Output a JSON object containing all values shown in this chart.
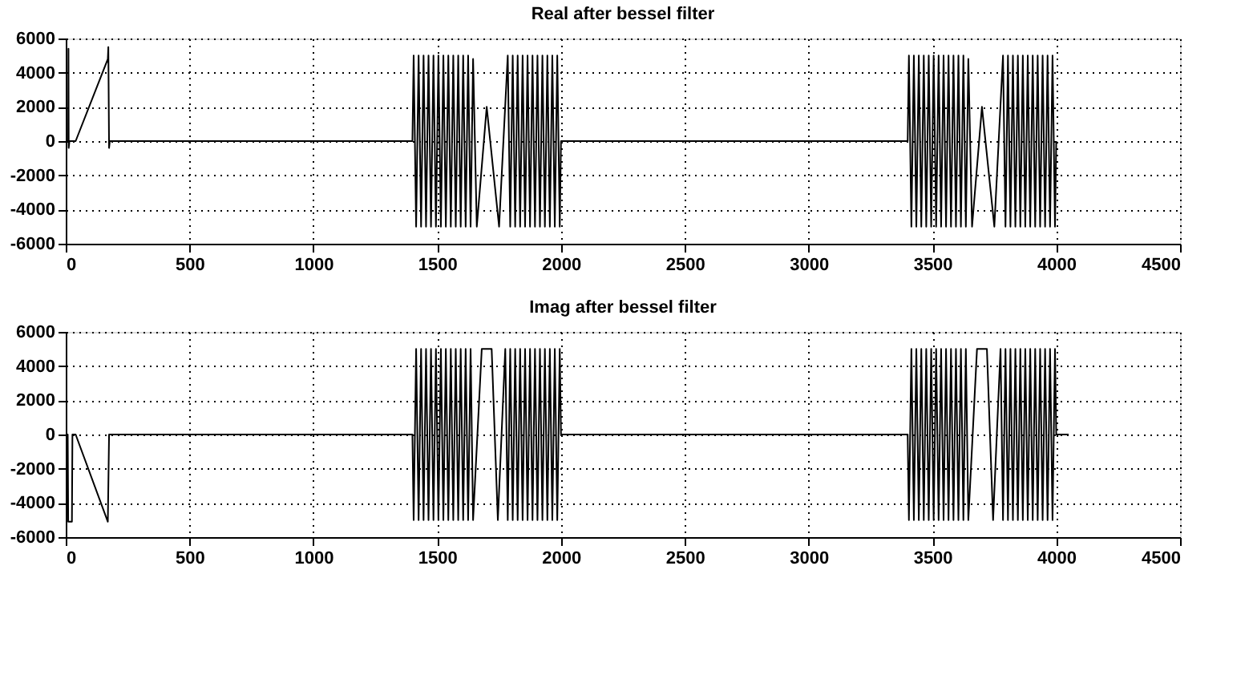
{
  "chart_data": [
    {
      "type": "line",
      "title": "Real after bessel filter",
      "xlim": [
        0,
        4500
      ],
      "ylim": [
        -6000,
        6000
      ],
      "xticks": [
        0,
        500,
        1000,
        1500,
        2000,
        2500,
        3000,
        3500,
        4000,
        4500
      ],
      "yticks": [
        -6000,
        -4000,
        -2000,
        0,
        2000,
        4000,
        6000
      ],
      "grid": true,
      "x": [
        0,
        10,
        11,
        12,
        15,
        40,
        170,
        172,
        175,
        178,
        1400,
        1405,
        1415,
        1425,
        1435,
        1445,
        1455,
        1465,
        1475,
        1485,
        1495,
        1505,
        1515,
        1525,
        1535,
        1545,
        1555,
        1565,
        1575,
        1585,
        1595,
        1605,
        1615,
        1625,
        1635,
        1645,
        1660,
        1700,
        1750,
        1785,
        1795,
        1805,
        1815,
        1825,
        1835,
        1845,
        1855,
        1865,
        1875,
        1885,
        1895,
        1905,
        1915,
        1925,
        1935,
        1945,
        1955,
        1965,
        1975,
        1985,
        1995,
        2000,
        3400,
        3405,
        3415,
        3425,
        3435,
        3445,
        3455,
        3465,
        3475,
        3485,
        3495,
        3505,
        3515,
        3525,
        3535,
        3545,
        3555,
        3565,
        3575,
        3585,
        3595,
        3605,
        3615,
        3625,
        3635,
        3645,
        3660,
        3700,
        3750,
        3785,
        3795,
        3805,
        3815,
        3825,
        3835,
        3845,
        3855,
        3865,
        3875,
        3885,
        3895,
        3905,
        3915,
        3925,
        3935,
        3945,
        3955,
        3965,
        3975,
        3985,
        3995,
        4000
      ],
      "series": [
        {
          "color": "#000000",
          "values": [
            0,
            0,
            5400,
            -400,
            0,
            0,
            4800,
            5500,
            -400,
            0,
            0,
            5000,
            -5000,
            5000,
            -5000,
            5000,
            -5000,
            5000,
            -5000,
            5000,
            -5000,
            5000,
            -5000,
            5000,
            -5000,
            5000,
            -5000,
            5000,
            -5000,
            5000,
            -5000,
            5000,
            -5000,
            5000,
            -5000,
            4800,
            -5000,
            2000,
            -5000,
            5000,
            -5000,
            5000,
            -5000,
            5000,
            -5000,
            5000,
            -5000,
            5000,
            -5000,
            5000,
            -5000,
            5000,
            -5000,
            5000,
            -5000,
            5000,
            -5000,
            5000,
            -5000,
            5000,
            -5000,
            0,
            0,
            5000,
            -5000,
            5000,
            -5000,
            5000,
            -5000,
            5000,
            -5000,
            5000,
            -5000,
            5000,
            -5000,
            5000,
            -5000,
            5000,
            -5000,
            5000,
            -5000,
            5000,
            -5000,
            5000,
            -5000,
            5000,
            -5000,
            4800,
            -5000,
            2000,
            -5000,
            5000,
            -5000,
            5000,
            -5000,
            5000,
            -5000,
            5000,
            -5000,
            5000,
            -5000,
            5000,
            -5000,
            5000,
            -5000,
            5000,
            -5000,
            5000,
            -5000,
            5000,
            -5000,
            5000,
            -5000,
            0
          ]
        }
      ]
    },
    {
      "type": "line",
      "title": "Imag after bessel filter",
      "xlim": [
        0,
        4500
      ],
      "ylim": [
        -6000,
        6000
      ],
      "xticks": [
        0,
        500,
        1000,
        1500,
        2000,
        2500,
        3000,
        3500,
        4000,
        4500
      ],
      "yticks": [
        -6000,
        -4000,
        -2000,
        0,
        2000,
        4000,
        6000
      ],
      "grid": true,
      "x": [
        0,
        8,
        10,
        25,
        27,
        40,
        170,
        175,
        1400,
        1405,
        1415,
        1425,
        1435,
        1445,
        1455,
        1465,
        1475,
        1485,
        1495,
        1505,
        1515,
        1525,
        1535,
        1545,
        1555,
        1565,
        1575,
        1585,
        1595,
        1605,
        1615,
        1625,
        1635,
        1645,
        1680,
        1720,
        1745,
        1775,
        1785,
        1795,
        1805,
        1815,
        1825,
        1835,
        1845,
        1855,
        1865,
        1875,
        1885,
        1895,
        1905,
        1915,
        1925,
        1935,
        1945,
        1955,
        1965,
        1975,
        1985,
        1995,
        2000,
        3400,
        3405,
        3415,
        3425,
        3435,
        3445,
        3455,
        3465,
        3475,
        3485,
        3495,
        3505,
        3515,
        3525,
        3535,
        3545,
        3555,
        3565,
        3575,
        3585,
        3595,
        3605,
        3615,
        3625,
        3635,
        3645,
        3680,
        3720,
        3745,
        3775,
        3785,
        3795,
        3805,
        3815,
        3825,
        3835,
        3845,
        3855,
        3865,
        3875,
        3885,
        3895,
        3905,
        3915,
        3925,
        3935,
        3945,
        3955,
        3965,
        3975,
        3985,
        3995,
        4000,
        4050
      ],
      "series": [
        {
          "color": "#000000",
          "values": [
            0,
            0,
            -5100,
            -5100,
            0,
            0,
            -5100,
            0,
            0,
            -5000,
            5000,
            -5000,
            5000,
            -5000,
            5000,
            -5000,
            5000,
            -5000,
            5000,
            -5000,
            5000,
            -5000,
            5000,
            -5000,
            5000,
            -5000,
            5000,
            -5000,
            5000,
            -5000,
            5000,
            -5000,
            5000,
            -5000,
            5000,
            5000,
            -5000,
            5000,
            -5000,
            5000,
            -5000,
            5000,
            -5000,
            5000,
            -5000,
            5000,
            -5000,
            5000,
            -5000,
            5000,
            -5000,
            5000,
            -5000,
            5000,
            -5000,
            5000,
            -5000,
            5000,
            -5000,
            5000,
            0,
            0,
            -5000,
            5000,
            -5000,
            5000,
            -5000,
            5000,
            -5000,
            5000,
            -5000,
            5000,
            -5000,
            5000,
            -5000,
            5000,
            -5000,
            5000,
            -5000,
            5000,
            -5000,
            5000,
            -5000,
            5000,
            -5000,
            5000,
            -5000,
            5000,
            5000,
            -5000,
            5000,
            -5000,
            5000,
            -5000,
            5000,
            -5000,
            5000,
            -5000,
            5000,
            -5000,
            5000,
            -5000,
            5000,
            -5000,
            5000,
            -5000,
            5000,
            -5000,
            5000,
            -5000,
            5000,
            -5000,
            5000,
            0,
            0
          ]
        }
      ]
    }
  ]
}
